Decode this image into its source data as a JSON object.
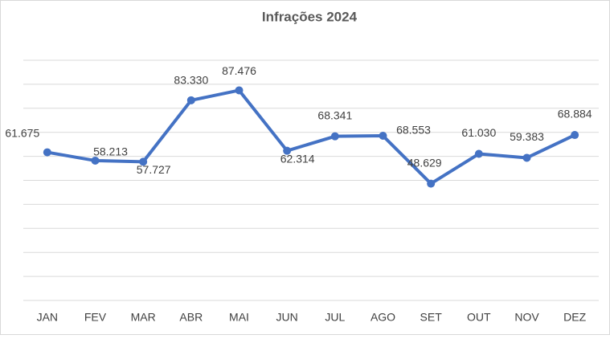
{
  "chart_data": {
    "type": "line",
    "title": "Infrações 2024",
    "categories": [
      "JAN",
      "FEV",
      "MAR",
      "ABR",
      "MAI",
      "JUN",
      "JUL",
      "AGO",
      "SET",
      "OUT",
      "NOV",
      "DEZ"
    ],
    "series": [
      {
        "color": "#4472c4",
        "values": [
          61675,
          58213,
          57727,
          83330,
          87476,
          62314,
          68341,
          68553,
          48629,
          61030,
          59383,
          68884
        ],
        "value_labels": [
          "61.675",
          "58.213",
          "57.727",
          "83.330",
          "87.476",
          "62.314",
          "68.341",
          "68.553",
          "48.629",
          "61.030",
          "59.383",
          "68.884"
        ]
      }
    ],
    "ylim": [
      0,
      100000
    ],
    "yticks": [
      0,
      10000,
      20000,
      30000,
      40000,
      50000,
      60000,
      70000,
      80000,
      90000,
      100000
    ],
    "grid": true
  }
}
